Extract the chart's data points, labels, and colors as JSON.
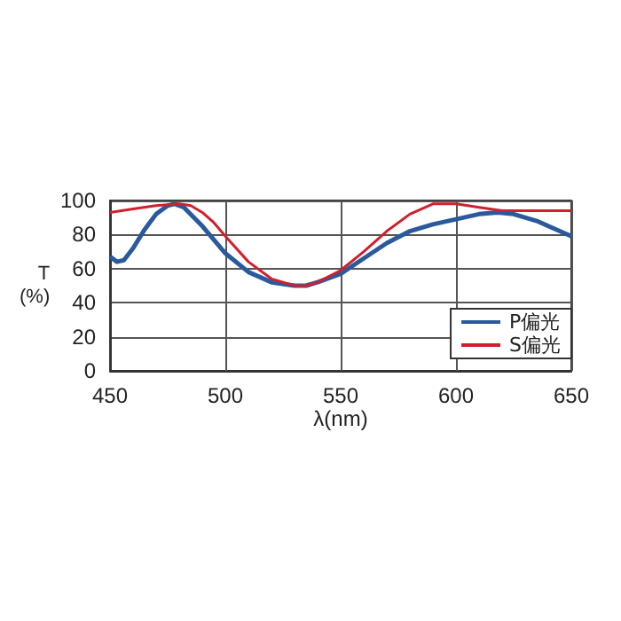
{
  "chart_data": {
    "type": "line",
    "xlabel": "λ(nm)",
    "ylabel": "T\n(%)",
    "xlim": [
      450,
      650
    ],
    "xticks": [
      450,
      500,
      550,
      600,
      650
    ],
    "ylim": [
      0,
      100
    ],
    "yticks": [
      0,
      20,
      40,
      60,
      80,
      100
    ],
    "grid": true,
    "legend": "bottom right",
    "marker": "none",
    "line_style": "solid",
    "series": [
      {
        "name": "P偏光",
        "color": "#2a5a9c",
        "x": [
          450,
          453,
          456,
          460,
          465,
          470,
          475,
          478,
          482,
          490,
          500,
          510,
          520,
          530,
          535,
          540,
          550,
          560,
          570,
          580,
          590,
          600,
          610,
          618,
          625,
          635,
          645,
          650
        ],
        "values": [
          67,
          64,
          65,
          72,
          83,
          92,
          97,
          98,
          96,
          85,
          69,
          58,
          52,
          50,
          50,
          52,
          57,
          66,
          75,
          82,
          86,
          89,
          92,
          93,
          92,
          88,
          82,
          79
        ]
      },
      {
        "name": "S偏光",
        "color": "#d0202e",
        "x": [
          450,
          460,
          470,
          480,
          485,
          490,
          495,
          500,
          510,
          520,
          530,
          535,
          540,
          550,
          560,
          570,
          580,
          590,
          600,
          610,
          620,
          630,
          640,
          650
        ],
        "values": [
          93,
          95,
          97,
          98,
          97,
          93,
          87,
          79,
          64,
          54,
          50,
          50,
          52,
          59,
          70,
          82,
          92,
          98,
          98,
          96,
          94,
          94,
          94,
          94
        ]
      }
    ]
  }
}
